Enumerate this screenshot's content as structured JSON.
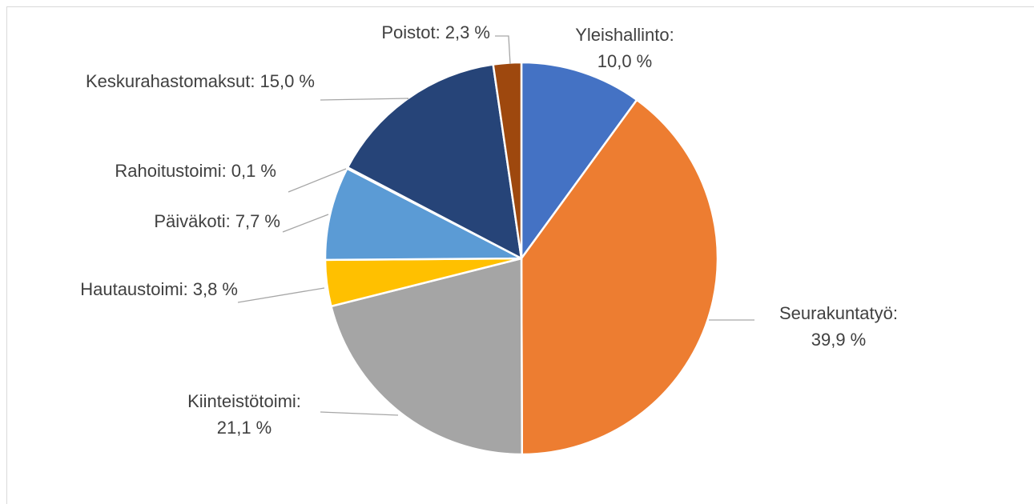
{
  "chart_data": {
    "type": "pie",
    "categories": [
      "Yleishallinto:",
      "Seurakuntatyö:",
      "Kiinteistötoimi:",
      "Hautaustoimi:",
      "Päiväkoti:",
      "Rahoitustoimi:",
      "Keskurahastomaksut:",
      "Poistot:"
    ],
    "values": [
      10.0,
      39.9,
      21.1,
      3.8,
      7.7,
      0.1,
      15.0,
      2.3
    ],
    "value_labels": [
      "10,0 %",
      "39,9 %",
      "21,1 %",
      "3,8 %",
      "7,7 %",
      "0,1 %",
      "15,0 %",
      "2,3 %"
    ],
    "colors": [
      "#4472c4",
      "#ed7d31",
      "#a5a5a5",
      "#ffc000",
      "#5b9bd5",
      "#70ad47",
      "#264478",
      "#9e480e"
    ]
  }
}
